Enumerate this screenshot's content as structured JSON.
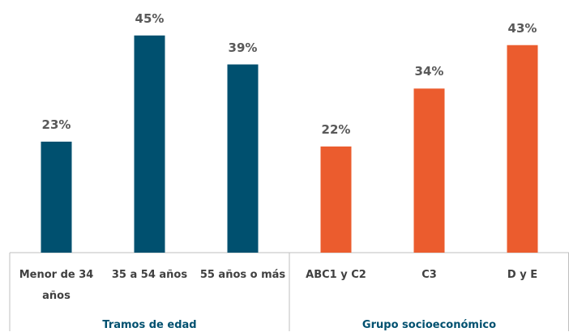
{
  "chart_data": {
    "type": "bar",
    "ylim": [
      0,
      50
    ],
    "groups": [
      {
        "name": "Tramos de edad",
        "color": "#00506f",
        "categories": [
          "Menor de 34 años",
          "35 a 54 años",
          "55 años o más"
        ],
        "values": [
          23,
          45,
          39
        ],
        "value_labels": [
          "23%",
          "45%",
          "39%"
        ]
      },
      {
        "name": "Grupo socioeconómico",
        "color": "#eb5c2e",
        "categories": [
          "ABC1 y C2",
          "C3",
          "D y E"
        ],
        "values": [
          22,
          34,
          43
        ],
        "value_labels": [
          "22%",
          "34%",
          "43%"
        ]
      }
    ]
  }
}
